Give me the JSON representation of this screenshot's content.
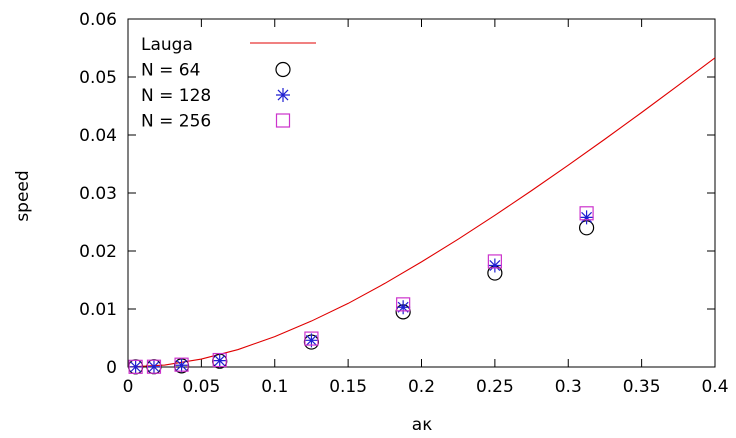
{
  "chart_data": {
    "type": "scatter",
    "title": "",
    "xlabel": "aκ",
    "ylabel": "speed",
    "xlim": [
      0,
      0.4
    ],
    "ylim": [
      0,
      0.06
    ],
    "xticks": [
      0,
      0.05,
      0.1,
      0.15,
      0.2,
      0.25,
      0.3,
      0.35,
      0.4
    ],
    "xtick_labels": [
      "0",
      "0.05",
      "0.1",
      "0.15",
      "0.2",
      "0.25",
      "0.3",
      "0.35",
      "0.4"
    ],
    "yticks": [
      0,
      0.01,
      0.02,
      0.03,
      0.04,
      0.05,
      0.06
    ],
    "ytick_labels": [
      "0",
      "0.01",
      "0.02",
      "0.03",
      "0.04",
      "0.05",
      "0.06"
    ],
    "grid": false,
    "legend_position": "top-left",
    "series": [
      {
        "name": "Lauga",
        "kind": "line",
        "color": "#e00000",
        "x": [
          0,
          0.025,
          0.05,
          0.075,
          0.1,
          0.125,
          0.15,
          0.175,
          0.2,
          0.225,
          0.25,
          0.275,
          0.3,
          0.325,
          0.35,
          0.375,
          0.4
        ],
        "y": [
          0,
          0.00034,
          0.00137,
          0.00301,
          0.00523,
          0.00792,
          0.01096,
          0.01441,
          0.01812,
          0.02204,
          0.02615,
          0.03041,
          0.0348,
          0.03929,
          0.04388,
          0.04856,
          0.0533
        ]
      },
      {
        "name": "N = 64",
        "kind": "points",
        "marker": "circle",
        "color": "#000000",
        "x": [
          0.0052,
          0.0177,
          0.0365,
          0.0625,
          0.125,
          0.1875,
          0.25,
          0.3125
        ],
        "y": [
          3e-05,
          5e-05,
          0.0002,
          0.001,
          0.0043,
          0.0095,
          0.0162,
          0.024
        ]
      },
      {
        "name": "N = 128",
        "kind": "points",
        "marker": "star",
        "color": "#1f1fd1",
        "x": [
          0.0052,
          0.0177,
          0.0365,
          0.0625,
          0.125,
          0.1875,
          0.25,
          0.3125
        ],
        "y": [
          3e-05,
          5e-05,
          0.0003,
          0.0011,
          0.0046,
          0.0103,
          0.0175,
          0.0258
        ]
      },
      {
        "name": "N = 256",
        "kind": "points",
        "marker": "square",
        "color": "#cc33cc",
        "x": [
          0.0052,
          0.0177,
          0.0365,
          0.0625,
          0.125,
          0.1875,
          0.25,
          0.3125
        ],
        "y": [
          3e-05,
          5e-05,
          0.0004,
          0.0012,
          0.0049,
          0.0108,
          0.0182,
          0.0265
        ]
      }
    ]
  }
}
